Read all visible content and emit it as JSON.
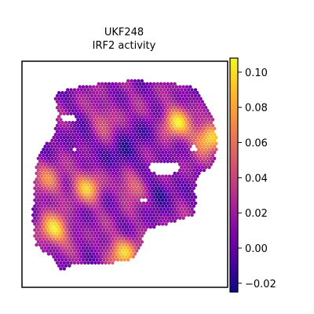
{
  "chart_data": {
    "type": "heatmap",
    "title_line1": "UKF248",
    "title_line2": "IRF2 activity",
    "xlabel": "",
    "ylabel": "",
    "colormap": "plasma",
    "colorbar": {
      "range": [
        -0.025,
        0.108
      ],
      "ticks": [
        {
          "value": 0.1,
          "label": "0.10"
        },
        {
          "value": 0.08,
          "label": "0.08"
        },
        {
          "value": 0.06,
          "label": "0.06"
        },
        {
          "value": 0.04,
          "label": "0.04"
        },
        {
          "value": 0.02,
          "label": "0.02"
        },
        {
          "value": 0.0,
          "label": "0.00"
        },
        {
          "value": -0.02,
          "label": "−0.02"
        }
      ]
    },
    "hotspots": [
      {
        "x": 0.78,
        "y": 0.22,
        "value": 0.095
      },
      {
        "x": 0.96,
        "y": 0.3,
        "value": 0.105
      },
      {
        "x": 0.3,
        "y": 0.56,
        "value": 0.08
      },
      {
        "x": 0.12,
        "y": 0.78,
        "value": 0.1
      },
      {
        "x": 0.5,
        "y": 0.9,
        "value": 0.09
      },
      {
        "x": 0.55,
        "y": 0.55,
        "value": 0.05
      },
      {
        "x": 0.1,
        "y": 0.52,
        "value": 0.06
      },
      {
        "x": 0.4,
        "y": 0.2,
        "value": 0.04
      }
    ],
    "coldspots": [
      {
        "x": 0.48,
        "y": 0.4,
        "value": -0.02
      },
      {
        "x": 0.7,
        "y": 0.58,
        "value": -0.015
      },
      {
        "x": 0.62,
        "y": 0.28,
        "value": -0.01
      },
      {
        "x": 0.25,
        "y": 0.32,
        "value": 0.0
      }
    ],
    "baseline": 0.012
  }
}
